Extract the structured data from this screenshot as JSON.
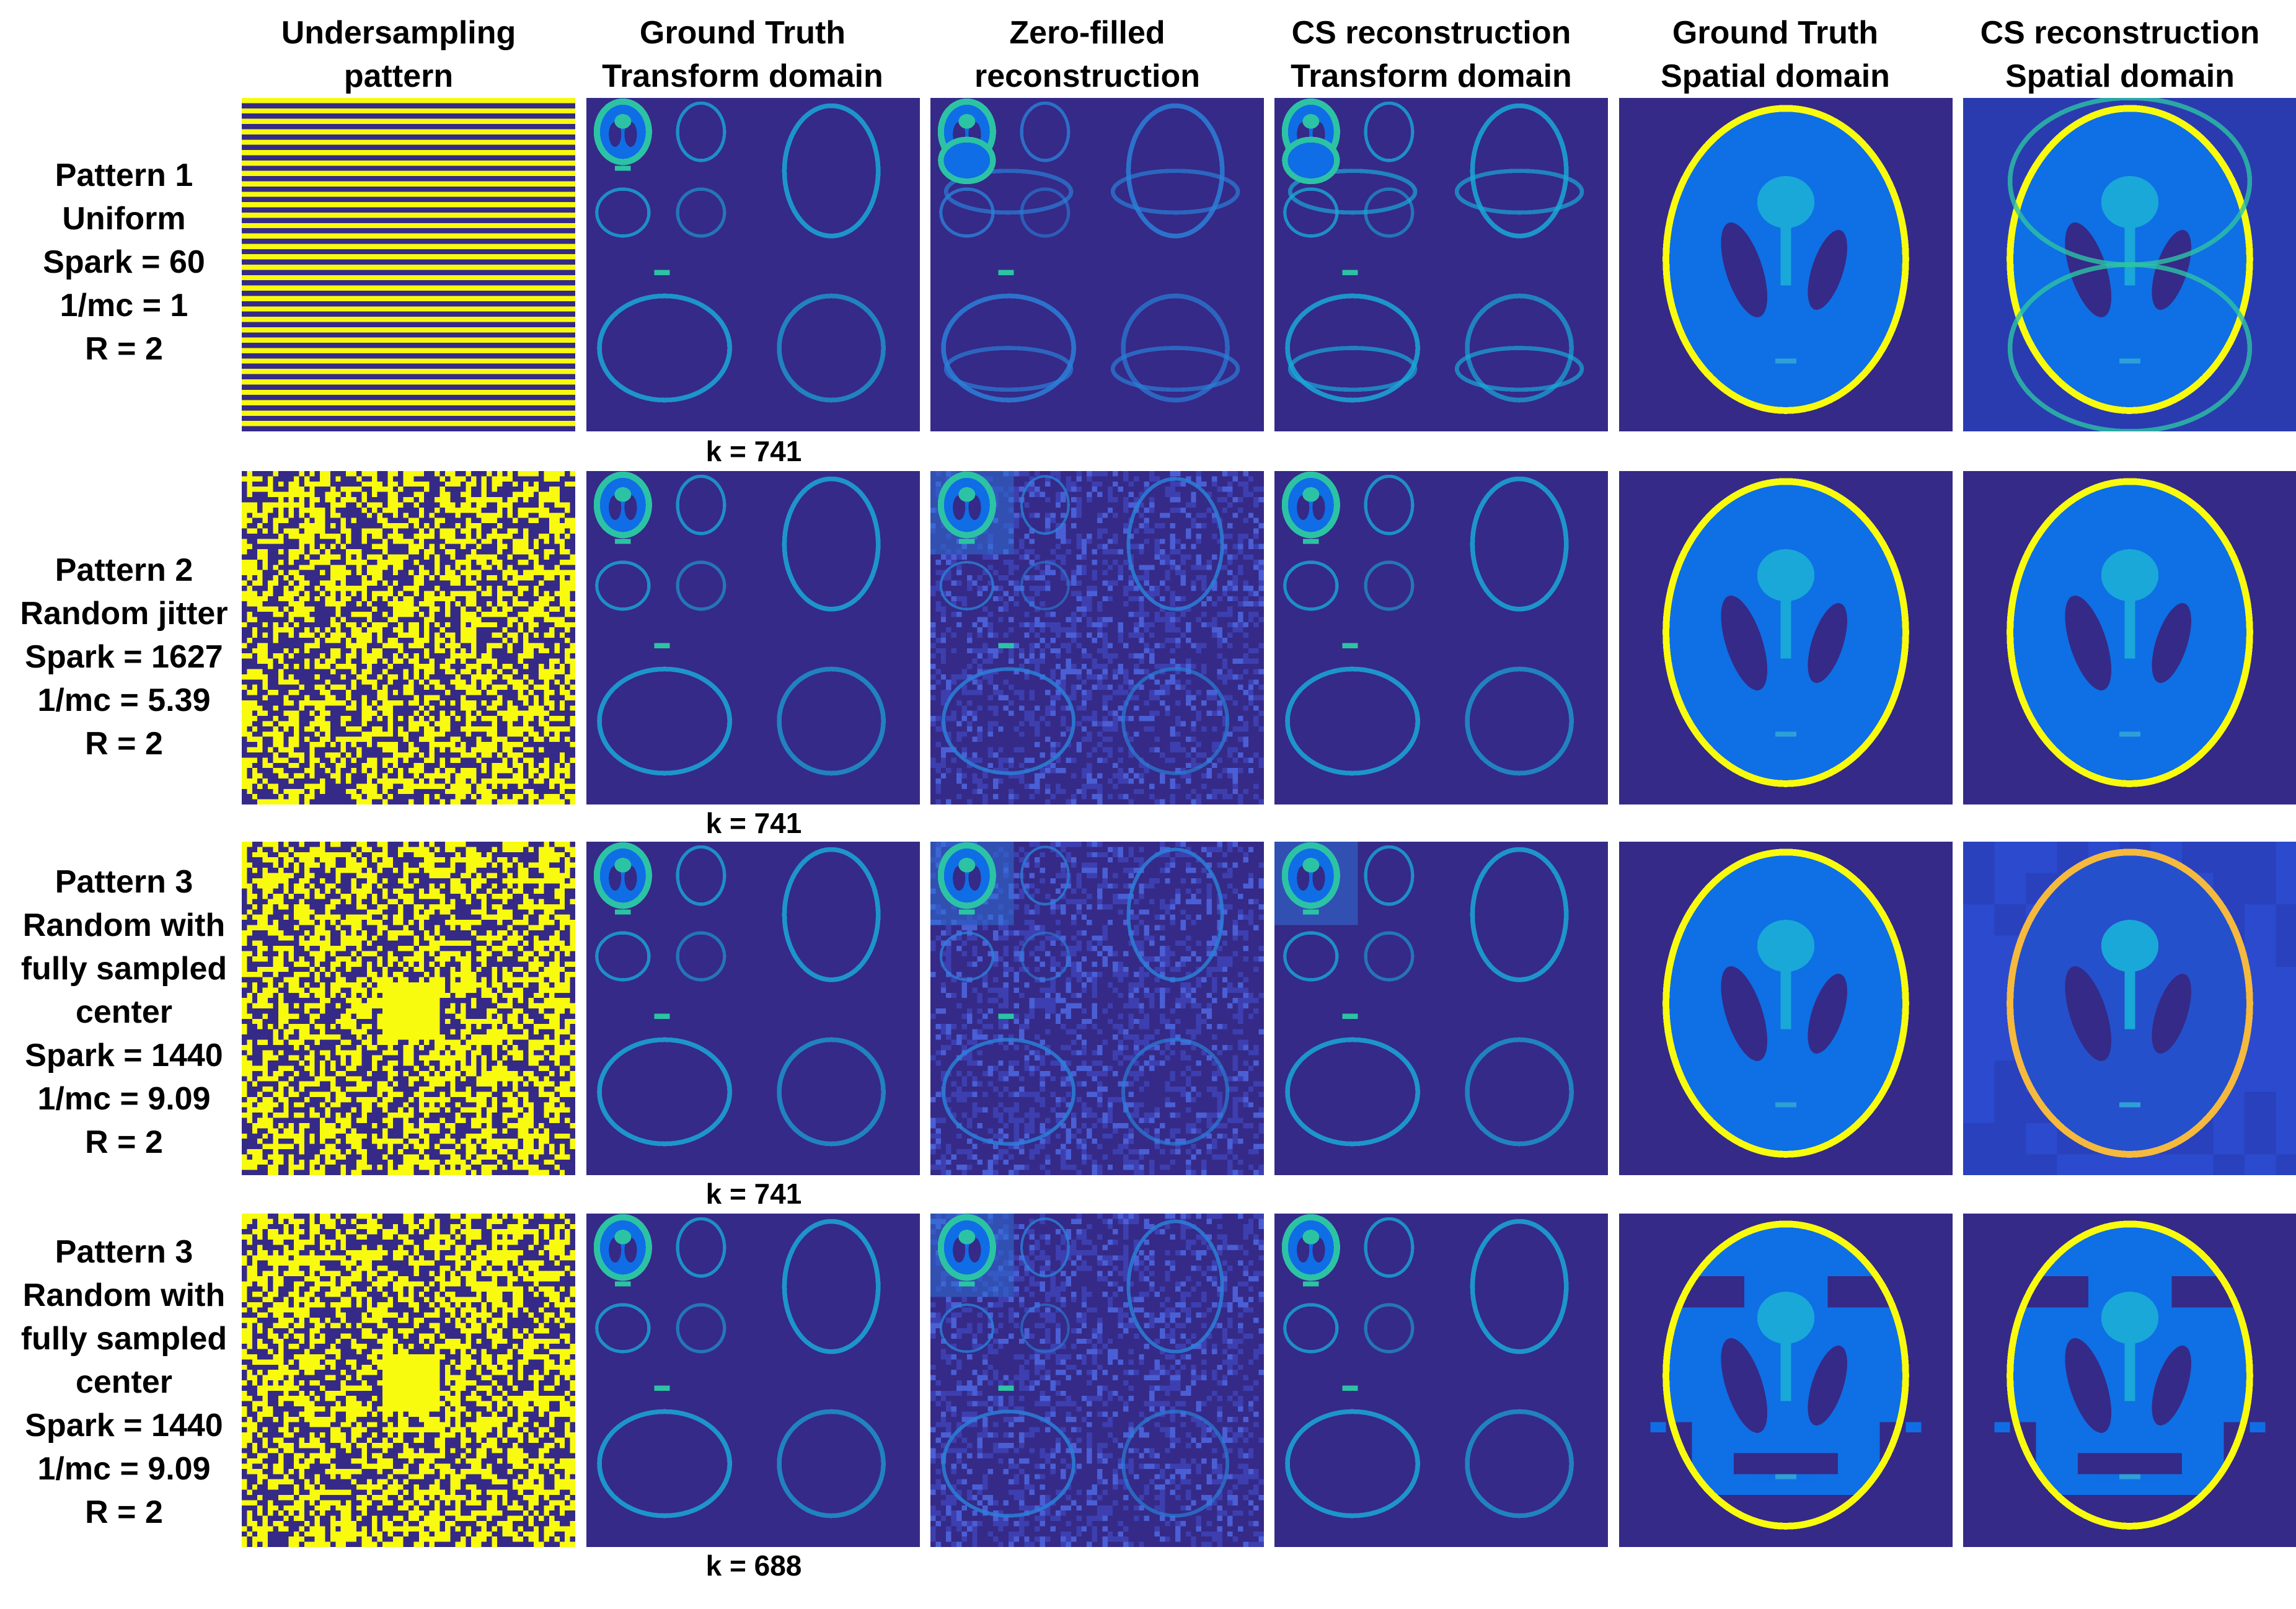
{
  "columns": [
    {
      "line1": "Undersampling",
      "line2": "pattern"
    },
    {
      "line1": "Ground Truth",
      "line2": "Transform domain"
    },
    {
      "line1": "Zero-filled",
      "line2": "reconstruction"
    },
    {
      "line1": "CS reconstruction",
      "line2": "Transform domain"
    },
    {
      "line1": "Ground Truth",
      "line2": "Spatial domain"
    },
    {
      "line1": "CS reconstruction",
      "line2": "Spatial domain"
    }
  ],
  "rows": [
    {
      "lines": [
        "Pattern 1",
        "Uniform",
        "Spark = 60",
        "1/mc = 1",
        "R = 2"
      ],
      "k": "k = 741"
    },
    {
      "lines": [
        "Pattern 2",
        "Random jitter",
        "Spark = 1627",
        "1/mc = 5.39",
        "R = 2"
      ],
      "k": "k = 741"
    },
    {
      "lines": [
        "Pattern 3",
        "Random with",
        "fully sampled",
        "center",
        "Spark = 1440",
        "1/mc = 9.09",
        "R = 2"
      ],
      "k": "k = 741"
    },
    {
      "lines": [
        "Pattern 3",
        "Random with",
        "fully sampled",
        "center",
        "Spark = 1440",
        "1/mc = 9.09",
        "R = 2"
      ],
      "k": "k = 688"
    }
  ],
  "colors": {
    "background_dark": "#352a87",
    "sampled_yellow": "#f9fb0e",
    "mid_blue": "#0f6ee6",
    "cyan": "#19a8d8",
    "teal": "#2cc3a4",
    "orange": "#f5b93e"
  }
}
